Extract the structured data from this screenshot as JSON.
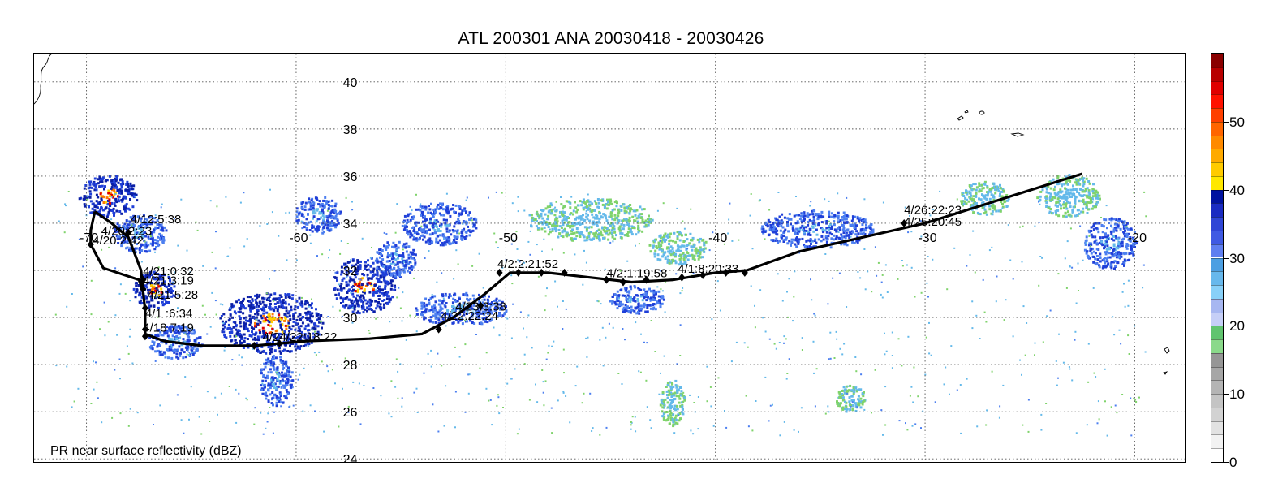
{
  "title": "ATL 200301 ANA 20030418 - 20030426",
  "footer_label": "PR near surface reflectivity (dBZ)",
  "map": {
    "lon_range": [
      -72.5,
      -17.5
    ],
    "lat_range": [
      23.8,
      41.2
    ],
    "lon_grid": [
      -70,
      -60,
      -50,
      -40,
      -30,
      -20
    ],
    "lat_grid": [
      40,
      38,
      36,
      34,
      32,
      30,
      28,
      26,
      24
    ],
    "lon_tick_labels": [
      "-70",
      "-60",
      "-50",
      "-40",
      "-30",
      "-20"
    ],
    "lat_tick_labels": [
      "40",
      "38",
      "36",
      "34",
      "32",
      "30",
      "28",
      "26",
      "24"
    ],
    "lat_label_lon": -58
  },
  "track": {
    "color": "#000000",
    "path": [
      [
        -69.6,
        34.5
      ],
      [
        -68.8,
        34.0
      ],
      [
        -68.0,
        33.4
      ],
      [
        -67.4,
        32.0
      ],
      [
        -67.3,
        31.1
      ],
      [
        -67.2,
        30.3
      ],
      [
        -67.2,
        29.3
      ],
      [
        -66.3,
        29.0
      ],
      [
        -64.5,
        28.8
      ],
      [
        -62.0,
        28.8
      ],
      [
        -59.5,
        29.0
      ],
      [
        -56.5,
        29.1
      ],
      [
        -54.0,
        29.3
      ],
      [
        -52.5,
        30.0
      ],
      [
        -51.0,
        31.0
      ],
      [
        -49.8,
        31.9
      ],
      [
        -48.0,
        31.9
      ],
      [
        -46.0,
        31.7
      ],
      [
        -44.0,
        31.5
      ],
      [
        -42.0,
        31.6
      ],
      [
        -40.0,
        31.9
      ],
      [
        -38.5,
        32.0
      ],
      [
        -36.0,
        32.8
      ],
      [
        -33.0,
        33.4
      ],
      [
        -30.0,
        34.0
      ],
      [
        -27.5,
        34.7
      ],
      [
        -25.0,
        35.4
      ],
      [
        -22.5,
        36.1
      ]
    ],
    "path_west": [
      [
        -69.6,
        34.5
      ],
      [
        -69.8,
        33.7
      ],
      [
        -69.8,
        33.1
      ],
      [
        -69.2,
        32.1
      ],
      [
        -67.5,
        31.6
      ],
      [
        -67.3,
        31.1
      ]
    ],
    "markers": [
      [
        -69.8,
        33.1
      ],
      [
        -68.0,
        33.6
      ],
      [
        -67.3,
        31.6
      ],
      [
        -67.3,
        31.2
      ],
      [
        -67.2,
        30.4
      ],
      [
        -67.2,
        29.5
      ],
      [
        -67.2,
        29.2
      ],
      [
        -62.0,
        28.8
      ],
      [
        -60.8,
        28.9
      ],
      [
        -53.2,
        29.5
      ],
      [
        -51.2,
        30.5
      ],
      [
        -50.3,
        31.9
      ],
      [
        -49.4,
        31.9
      ],
      [
        -48.3,
        31.9
      ],
      [
        -47.2,
        31.9
      ],
      [
        -45.2,
        31.6
      ],
      [
        -44.4,
        31.5
      ],
      [
        -43.3,
        31.6
      ],
      [
        -41.6,
        31.7
      ],
      [
        -40.6,
        31.8
      ],
      [
        -39.5,
        31.9
      ],
      [
        -38.6,
        31.9
      ],
      [
        -31.0,
        34.0
      ]
    ],
    "labels": [
      {
        "text": "4/12:5:38",
        "lon": -67.9,
        "lat": 34.0
      },
      {
        "text": "4/20:2:23",
        "lon": -69.3,
        "lat": 33.5
      },
      {
        "text": "4/20:2:42",
        "lon": -69.7,
        "lat": 33.1
      },
      {
        "text": "4/21:0:32",
        "lon": -67.3,
        "lat": 31.8
      },
      {
        "text": "4/21:3:19",
        "lon": -67.3,
        "lat": 31.4
      },
      {
        "text": "4/21 5:28",
        "lon": -67.1,
        "lat": 30.8
      },
      {
        "text": "4/1 :6:34",
        "lon": -67.2,
        "lat": 30.0
      },
      {
        "text": "4/18 7:19",
        "lon": -67.3,
        "lat": 29.4
      },
      {
        "text": "4/24/22:18:22",
        "lon": -61.6,
        "lat": 29.0
      },
      {
        "text": "4/23:3:38",
        "lon": -52.4,
        "lat": 30.3
      },
      {
        "text": "4/22:22:24",
        "lon": -53.1,
        "lat": 29.9
      },
      {
        "text": "4/2:2:21:52",
        "lon": -50.4,
        "lat": 32.1
      },
      {
        "text": "4/2:1:19:58",
        "lon": -45.2,
        "lat": 31.7
      },
      {
        "text": "4/1:8:20:33",
        "lon": -41.8,
        "lat": 31.9
      },
      {
        "text": "4/26:22:23",
        "lon": -31.0,
        "lat": 34.4
      },
      {
        "text": "4/25:20:45",
        "lon": -31.0,
        "lat": 33.9
      }
    ]
  },
  "reflectivity_field": {
    "cells": [
      {
        "lon": -69.0,
        "lat": 35.2,
        "rx": 1.4,
        "ry": 0.9,
        "level": "strong"
      },
      {
        "lon": -67.5,
        "lat": 33.6,
        "rx": 1.3,
        "ry": 0.8,
        "level": "moderate"
      },
      {
        "lon": -66.8,
        "lat": 31.2,
        "rx": 1.0,
        "ry": 0.8,
        "level": "strong"
      },
      {
        "lon": -65.8,
        "lat": 29.0,
        "rx": 1.3,
        "ry": 0.7,
        "level": "moderate"
      },
      {
        "lon": -61.2,
        "lat": 29.8,
        "rx": 2.5,
        "ry": 1.3,
        "level": "strong"
      },
      {
        "lon": -61.0,
        "lat": 27.4,
        "rx": 0.8,
        "ry": 1.1,
        "level": "moderate"
      },
      {
        "lon": -59.0,
        "lat": 34.4,
        "rx": 1.1,
        "ry": 0.8,
        "level": "moderate"
      },
      {
        "lon": -56.8,
        "lat": 31.4,
        "rx": 1.5,
        "ry": 1.2,
        "level": "strong"
      },
      {
        "lon": -55.3,
        "lat": 32.5,
        "rx": 1.0,
        "ry": 0.8,
        "level": "moderate"
      },
      {
        "lon": -53.2,
        "lat": 34.0,
        "rx": 1.8,
        "ry": 0.9,
        "level": "moderate"
      },
      {
        "lon": -52.2,
        "lat": 30.4,
        "rx": 2.2,
        "ry": 0.7,
        "level": "moderate"
      },
      {
        "lon": -46.0,
        "lat": 34.2,
        "rx": 3.0,
        "ry": 0.9,
        "level": "weak"
      },
      {
        "lon": -41.8,
        "lat": 33.0,
        "rx": 1.4,
        "ry": 0.7,
        "level": "weak"
      },
      {
        "lon": -43.8,
        "lat": 30.8,
        "rx": 1.3,
        "ry": 0.6,
        "level": "moderate"
      },
      {
        "lon": -35.2,
        "lat": 33.8,
        "rx": 2.7,
        "ry": 0.8,
        "level": "moderate"
      },
      {
        "lon": -27.2,
        "lat": 35.1,
        "rx": 1.2,
        "ry": 0.7,
        "level": "weak"
      },
      {
        "lon": -23.2,
        "lat": 35.2,
        "rx": 1.5,
        "ry": 0.9,
        "level": "weak"
      },
      {
        "lon": -21.2,
        "lat": 33.2,
        "rx": 1.3,
        "ry": 1.1,
        "level": "moderate"
      },
      {
        "lon": -33.6,
        "lat": 26.6,
        "rx": 0.7,
        "ry": 0.6,
        "level": "weak"
      },
      {
        "lon": -42.1,
        "lat": 26.4,
        "rx": 0.6,
        "ry": 1.0,
        "level": "weak"
      }
    ],
    "colors": {
      "weak": [
        "#7fd36b",
        "#64b9ea"
      ],
      "moderate": [
        "#4c7ff0",
        "#1f3fd8",
        "#64b9ea"
      ],
      "strong": [
        "#1f3fd8",
        "#0b1fa6",
        "#ffd200",
        "#ff7a00",
        "#e00000"
      ]
    }
  },
  "colorbar": {
    "tick_labels": [
      "0",
      "10",
      "20",
      "30",
      "40",
      "50"
    ],
    "tick_values": [
      0,
      10,
      20,
      30,
      40,
      50
    ],
    "range": [
      0,
      60
    ],
    "segments": [
      {
        "from": 0,
        "to": 2,
        "color": "#ffffff"
      },
      {
        "from": 2,
        "to": 4,
        "color": "#f2f2f2"
      },
      {
        "from": 4,
        "to": 6,
        "color": "#e2e2e2"
      },
      {
        "from": 6,
        "to": 8,
        "color": "#d2d2d2"
      },
      {
        "from": 8,
        "to": 10,
        "color": "#c4c4c4"
      },
      {
        "from": 10,
        "to": 12,
        "color": "#b4b4b4"
      },
      {
        "from": 12,
        "to": 14,
        "color": "#a6a6a6"
      },
      {
        "from": 14,
        "to": 16,
        "color": "#969696"
      },
      {
        "from": 16,
        "to": 18,
        "color": "#8ad98a"
      },
      {
        "from": 18,
        "to": 20,
        "color": "#61c46f"
      },
      {
        "from": 20,
        "to": 22,
        "color": "#c6cff7"
      },
      {
        "from": 22,
        "to": 24,
        "color": "#a7b7f1"
      },
      {
        "from": 24,
        "to": 26,
        "color": "#88d0f8"
      },
      {
        "from": 26,
        "to": 28,
        "color": "#67b8ec"
      },
      {
        "from": 28,
        "to": 30,
        "color": "#4c9fe2"
      },
      {
        "from": 30,
        "to": 32,
        "color": "#5f7ff0"
      },
      {
        "from": 32,
        "to": 34,
        "color": "#3f5ae3"
      },
      {
        "from": 34,
        "to": 36,
        "color": "#2f46d6"
      },
      {
        "from": 36,
        "to": 38,
        "color": "#1a2bc2"
      },
      {
        "from": 38,
        "to": 40,
        "color": "#0012a0"
      },
      {
        "from": 40,
        "to": 42,
        "color": "#ffe800"
      },
      {
        "from": 42,
        "to": 44,
        "color": "#ffcb00"
      },
      {
        "from": 44,
        "to": 46,
        "color": "#ffaa00"
      },
      {
        "from": 46,
        "to": 48,
        "color": "#ff8a00"
      },
      {
        "from": 48,
        "to": 50,
        "color": "#ff6500"
      },
      {
        "from": 50,
        "to": 52,
        "color": "#ff4000"
      },
      {
        "from": 52,
        "to": 54,
        "color": "#ff1200"
      },
      {
        "from": 54,
        "to": 56,
        "color": "#e00000"
      },
      {
        "from": 56,
        "to": 58,
        "color": "#b80000"
      },
      {
        "from": 58,
        "to": 60,
        "color": "#8a0000"
      }
    ]
  }
}
